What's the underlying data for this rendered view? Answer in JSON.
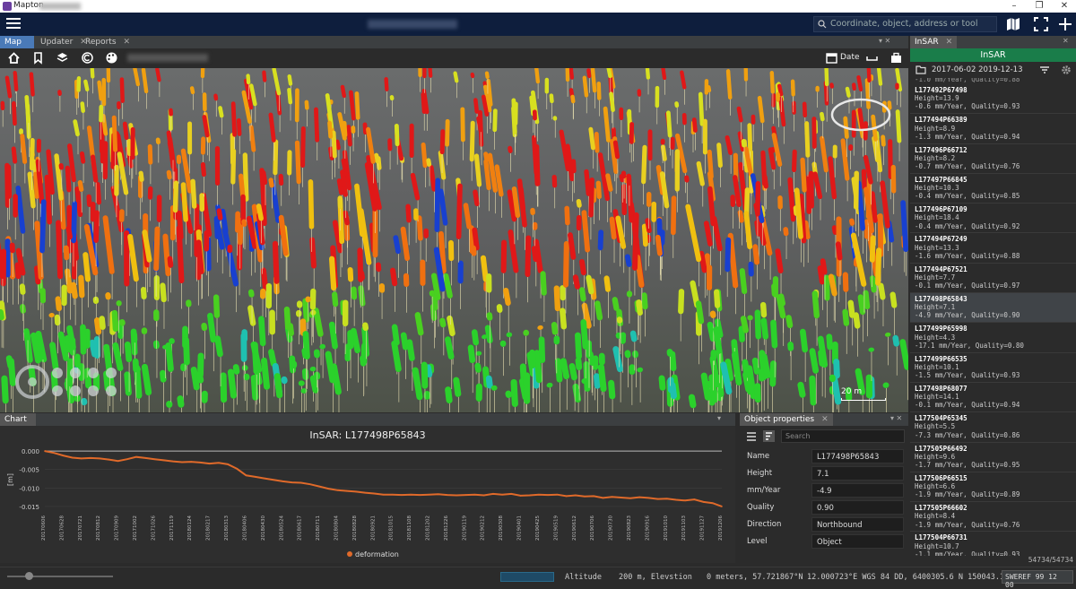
{
  "app": {
    "title": "Mapton"
  },
  "topbar": {
    "search_placeholder": "Coordinate, object, address or tool"
  },
  "map_tabs": [
    {
      "label": "Map"
    },
    {
      "label": "Updater"
    },
    {
      "label": "Reports"
    }
  ],
  "map_toolbar": {
    "date_label": "Date",
    "scale_label": "20 m"
  },
  "chart_tab": {
    "label": "Chart"
  },
  "props_tab": {
    "label": "Object properties"
  },
  "insar_tab": {
    "label": "InSAR"
  },
  "insar": {
    "header": "InSAR",
    "date_range": "2017-06-02  2019-12-13",
    "partial_top": "-1.0 mm/Year, Quality=0.88",
    "points": [
      {
        "id": "L177492P67498",
        "height": "Height=13.9",
        "rate": "-0.6 mm/Year, Quality=0.93"
      },
      {
        "id": "L177494P66389",
        "height": "Height=8.9",
        "rate": "-1.3 mm/Year, Quality=0.94"
      },
      {
        "id": "L177496P66712",
        "height": "Height=8.2",
        "rate": "-0.7 mm/Year, Quality=0.76"
      },
      {
        "id": "L177497P66845",
        "height": "Height=10.3",
        "rate": "-0.4 mm/Year, Quality=0.85"
      },
      {
        "id": "L177496P67109",
        "height": "Height=18.4",
        "rate": "-0.4 mm/Year, Quality=0.92"
      },
      {
        "id": "L177494P67249",
        "height": "Height=13.3",
        "rate": "-1.6 mm/Year, Quality=0.88"
      },
      {
        "id": "L177494P67521",
        "height": "Height=7.7",
        "rate": "-0.1 mm/Year, Quality=0.97"
      },
      {
        "id": "L177498P65843",
        "height": "Height=7.1",
        "rate": "-4.9 mm/Year, Quality=0.90"
      },
      {
        "id": "L177499P65998",
        "height": "Height=4.3",
        "rate": "-17.1 mm/Year, Quality=0.80"
      },
      {
        "id": "L177499P66535",
        "height": "Height=10.1",
        "rate": "-1.5 mm/Year, Quality=0.93"
      },
      {
        "id": "L177498P68077",
        "height": "Height=14.1",
        "rate": "-0.1 mm/Year, Quality=0.94"
      },
      {
        "id": "L177504P65345",
        "height": "Height=5.5",
        "rate": "-7.3 mm/Year, Quality=0.86"
      },
      {
        "id": "L177505P66492",
        "height": "Height=9.6",
        "rate": "-1.7 mm/Year, Quality=0.95"
      },
      {
        "id": "L177506P66515",
        "height": "Height=6.6",
        "rate": "-1.9 mm/Year, Quality=0.89"
      },
      {
        "id": "L177505P66602",
        "height": "Height=8.4",
        "rate": "-1.9 mm/Year, Quality=0.76"
      },
      {
        "id": "L177504P66731",
        "height": "Height=10.7",
        "rate": "-1.1 mm/Year, Quality=0.93"
      }
    ],
    "count": "54734/54734"
  },
  "properties": {
    "search_placeholder": "Search",
    "rows": [
      {
        "label": "Name",
        "value": "L177498P65843"
      },
      {
        "label": "Height",
        "value": "7.1"
      },
      {
        "label": "mm/Year",
        "value": "-4.9"
      },
      {
        "label": "Quality",
        "value": "0.90"
      },
      {
        "label": "Direction",
        "value": "Northbound"
      },
      {
        "label": "Level",
        "value": "Object"
      }
    ]
  },
  "status": {
    "altitude_label": "Altitude",
    "altitude_value": "200 m, Elevstion",
    "coords": "0 meters, 57.721867°N",
    "wgs": "12.000723°E WGS 84 DD, 6400305.6 N  150043.1 E",
    "crs": "SWEREF 99 12 00"
  },
  "colors": {
    "accent_blue": "#4a7ab8",
    "insar_green": "#1a7d4a",
    "series_orange": "#e06a2a",
    "topbar_navy": "#0e1e3d"
  },
  "chart_data": {
    "type": "line",
    "title": "InSAR: L177498P65843",
    "ylabel": "[m]",
    "ylim": [
      -0.016,
      0.001
    ],
    "yticks": [
      "0.000",
      "-0.005",
      "-0.010",
      "-0.015"
    ],
    "legend": "deformation",
    "x": [
      "20170606",
      "20170612",
      "20170628",
      "20170710",
      "20170721",
      "20170803",
      "20170812",
      "20170826",
      "20170909",
      "20170921",
      "20171002",
      "20171014",
      "20171026",
      "20171107",
      "20171119",
      "20180112",
      "20180124",
      "20180205",
      "20180217",
      "20180301",
      "20180313",
      "20180325",
      "20180406",
      "20180418",
      "20180430",
      "20180512",
      "20180524",
      "20180605",
      "20180617",
      "20180629",
      "20180711",
      "20180723",
      "20180804",
      "20180816",
      "20180828",
      "20180909",
      "20180921",
      "20181003",
      "20181015",
      "20181027",
      "20181108",
      "20181120",
      "20181202",
      "20181214",
      "20181226",
      "20190107",
      "20190119",
      "20190131",
      "20190212",
      "20190224",
      "20190308",
      "20190320",
      "20190401",
      "20190413",
      "20190425",
      "20190507",
      "20190519",
      "20190531",
      "20190612",
      "20190624",
      "20190706",
      "20190718",
      "20190730",
      "20190811",
      "20190823",
      "20190904",
      "20190916",
      "20190928",
      "20191010",
      "20191022",
      "20191103",
      "20191115",
      "20191127",
      "20191209",
      "20191206"
    ],
    "series": [
      {
        "name": "deformation",
        "values": [
          0.0,
          -0.0005,
          -0.0012,
          -0.0018,
          -0.002,
          -0.0019,
          -0.002,
          -0.0023,
          -0.0027,
          -0.0022,
          -0.0016,
          -0.0019,
          -0.0022,
          -0.0025,
          -0.0028,
          -0.003,
          -0.0029,
          -0.0031,
          -0.0034,
          -0.0032,
          -0.0036,
          -0.0048,
          -0.0066,
          -0.007,
          -0.0074,
          -0.0078,
          -0.0082,
          -0.0085,
          -0.0086,
          -0.009,
          -0.0096,
          -0.0102,
          -0.0106,
          -0.0108,
          -0.011,
          -0.0113,
          -0.0115,
          -0.0118,
          -0.0118,
          -0.0119,
          -0.0118,
          -0.0119,
          -0.0118,
          -0.0117,
          -0.0119,
          -0.012,
          -0.0119,
          -0.0118,
          -0.012,
          -0.0116,
          -0.0118,
          -0.0116,
          -0.0121,
          -0.012,
          -0.0118,
          -0.0119,
          -0.0118,
          -0.0122,
          -0.012,
          -0.0123,
          -0.0122,
          -0.0127,
          -0.0124,
          -0.0126,
          -0.0128,
          -0.0125,
          -0.0127,
          -0.013,
          -0.0129,
          -0.0132,
          -0.0134,
          -0.0131,
          -0.0138,
          -0.0141,
          -0.015
        ]
      }
    ]
  }
}
